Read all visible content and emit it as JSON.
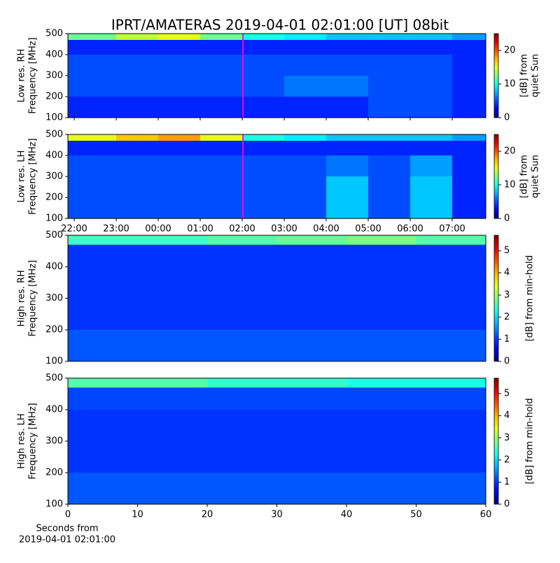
{
  "chart_data": [
    {
      "type": "heatmap",
      "title": "IPRT/AMATERAS 2019-04-01 02:01:00 [UT]   08bit",
      "y_label": [
        "Low res. RH",
        "Frequency [MHz]"
      ],
      "cbar_label": [
        "[dB] from",
        "quiet Sun"
      ],
      "xlim": [
        21.85,
        31.8
      ],
      "xticks": [
        {
          "value": 22,
          "label": "22:00"
        },
        {
          "value": 23,
          "label": "23:00"
        },
        {
          "value": 24,
          "label": "00:00"
        },
        {
          "value": 25,
          "label": "01:00"
        },
        {
          "value": 26,
          "label": "02:00"
        },
        {
          "value": 27,
          "label": "03:00"
        },
        {
          "value": 28,
          "label": "04:00"
        },
        {
          "value": 29,
          "label": "05:00"
        },
        {
          "value": 30,
          "label": "06:00"
        },
        {
          "value": 31,
          "label": "07:00"
        }
      ],
      "xtick_labels": false,
      "ylim": [
        100,
        500
      ],
      "yticks": [
        100,
        200,
        300,
        400,
        500
      ],
      "clim": [
        0,
        25
      ],
      "cticks": [
        0,
        10,
        20
      ],
      "marker_x": 26.02,
      "marker_color": "#ff00ff",
      "x_bins": [
        21.85,
        23,
        24,
        25,
        26,
        27,
        28,
        29,
        30,
        31,
        31.8
      ],
      "y_bins": [
        100,
        200,
        300,
        400,
        470,
        500
      ],
      "z": [
        [
          4,
          4,
          4,
          4,
          4,
          4,
          4,
          5,
          5,
          4
        ],
        [
          5,
          5,
          5,
          5,
          5,
          6,
          6,
          5,
          5,
          4
        ],
        [
          5,
          5,
          5,
          5,
          5,
          5,
          5,
          5,
          5,
          4
        ],
        [
          4,
          4,
          4,
          4,
          4,
          4,
          4,
          4,
          4,
          4
        ],
        [
          12,
          14,
          15,
          12,
          10,
          9,
          8,
          8,
          8,
          7
        ]
      ]
    },
    {
      "type": "heatmap",
      "y_label": [
        "Low res. LH",
        "Frequency [MHz]"
      ],
      "cbar_label": [
        "[dB] from",
        "quiet Sun"
      ],
      "xlim": [
        21.85,
        31.8
      ],
      "xticks": [
        {
          "value": 22,
          "label": "22:00"
        },
        {
          "value": 23,
          "label": "23:00"
        },
        {
          "value": 24,
          "label": "00:00"
        },
        {
          "value": 25,
          "label": "01:00"
        },
        {
          "value": 26,
          "label": "02:00"
        },
        {
          "value": 27,
          "label": "03:00"
        },
        {
          "value": 28,
          "label": "04:00"
        },
        {
          "value": 29,
          "label": "05:00"
        },
        {
          "value": 30,
          "label": "06:00"
        },
        {
          "value": 31,
          "label": "07:00"
        }
      ],
      "xtick_labels": true,
      "ylim": [
        100,
        500
      ],
      "yticks": [
        100,
        200,
        300,
        400,
        500
      ],
      "clim": [
        0,
        25
      ],
      "cticks": [
        0,
        10,
        20
      ],
      "marker_x": 26.02,
      "marker_color": "#ff00ff",
      "x_bins": [
        21.85,
        23,
        24,
        25,
        26,
        27,
        28,
        29,
        30,
        31,
        31.8
      ],
      "y_bins": [
        100,
        200,
        300,
        400,
        470,
        500
      ],
      "z": [
        [
          5,
          5,
          5,
          5,
          5,
          5,
          8,
          5,
          8,
          4
        ],
        [
          5,
          5,
          5,
          5,
          5,
          5,
          8,
          5,
          8,
          4
        ],
        [
          5,
          5,
          5,
          5,
          5,
          5,
          6,
          5,
          7,
          4
        ],
        [
          4,
          4,
          4,
          4,
          4,
          4,
          4,
          4,
          4,
          4
        ],
        [
          15,
          17,
          18,
          15,
          10,
          9,
          8,
          8,
          8,
          7
        ]
      ]
    },
    {
      "type": "heatmap",
      "y_label": [
        "High res. RH",
        "Frequency [MHz]"
      ],
      "cbar_label": [
        "[dB] from min-hold"
      ],
      "xlim": [
        0,
        60
      ],
      "ylim": [
        100,
        500
      ],
      "yticks": [
        100,
        200,
        300,
        400,
        500
      ],
      "clim": [
        0,
        5.7
      ],
      "cticks": [
        0,
        1,
        2,
        3,
        4,
        5
      ],
      "x_bins": [
        0,
        10,
        20,
        30,
        40,
        50,
        60
      ],
      "y_bins": [
        100,
        200,
        300,
        400,
        470,
        500
      ],
      "z": [
        [
          1.2,
          1.2,
          1.2,
          1.2,
          1.2,
          1.2
        ],
        [
          1,
          1,
          1,
          1,
          1,
          1
        ],
        [
          1,
          1,
          1,
          1,
          1,
          1
        ],
        [
          1,
          1,
          1,
          1,
          1,
          1
        ],
        [
          2.5,
          2.5,
          2.6,
          2.7,
          2.8,
          2.6
        ]
      ]
    },
    {
      "type": "heatmap",
      "y_label": [
        "High res. LH",
        "Frequency [MHz]"
      ],
      "cbar_label": [
        "[dB] from min-hold"
      ],
      "x_label": [
        "Seconds from",
        "2019-04-01 02:01:00"
      ],
      "xlim": [
        0,
        60
      ],
      "xticks": [
        0,
        10,
        20,
        30,
        40,
        50,
        60
      ],
      "xtick_labels": true,
      "ylim": [
        100,
        500
      ],
      "yticks": [
        100,
        200,
        300,
        400,
        500
      ],
      "clim": [
        0,
        5.7
      ],
      "cticks": [
        0,
        1,
        2,
        3,
        4,
        5
      ],
      "x_bins": [
        0,
        10,
        20,
        30,
        40,
        50,
        60
      ],
      "y_bins": [
        100,
        200,
        300,
        400,
        470,
        500
      ],
      "z": [
        [
          1.2,
          1.2,
          1.2,
          1.2,
          1.2,
          1.2
        ],
        [
          1,
          1,
          1,
          1,
          1,
          1
        ],
        [
          1,
          1,
          1,
          1,
          1,
          1
        ],
        [
          1.1,
          1.1,
          1.1,
          1.1,
          1.1,
          1.1
        ],
        [
          2.6,
          2.6,
          2.4,
          2.4,
          2.3,
          2.3
        ]
      ]
    }
  ]
}
